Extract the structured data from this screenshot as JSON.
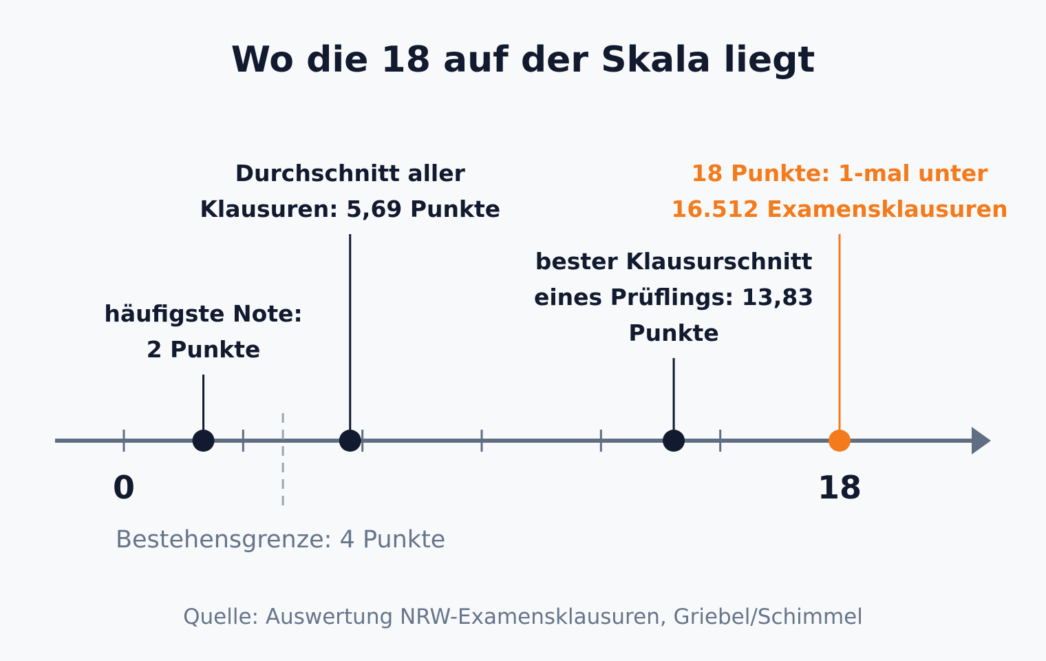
{
  "title": "Wo die 18 auf der Skala liegt",
  "source": "Quelle: Auswertung NRW-Examensklausuren, Griebel/Schimmel",
  "colors": {
    "background": "#f8f9fb",
    "axis": "#5f6e82",
    "marker": "#111a2e",
    "highlight": "#f47b1c",
    "threshold": "#9aa6b4",
    "muted_text": "#66758a"
  },
  "scale": {
    "min": 0,
    "max": 18,
    "tick_step": 3,
    "end_labels": [
      "0",
      "18"
    ]
  },
  "threshold": {
    "value": 4,
    "label": "Bestehensgrenze: 4 Punkte"
  },
  "markers": [
    {
      "id": "mode",
      "value": 2,
      "lines": [
        "häufigste Note:",
        "2 Punkte"
      ],
      "highlight": false
    },
    {
      "id": "mean",
      "value": 5.69,
      "lines": [
        "Durchschnitt aller",
        "Klausuren: 5,69 Punkte"
      ],
      "highlight": false
    },
    {
      "id": "best",
      "value": 13.83,
      "lines": [
        "bester Klausurschnitt",
        "eines Prüflings: 13,83",
        "Punkte"
      ],
      "highlight": false
    },
    {
      "id": "max",
      "value": 18,
      "lines": [
        "18 Punkte: 1-mal unter",
        "16.512 Examensklausuren"
      ],
      "highlight": true
    }
  ]
}
